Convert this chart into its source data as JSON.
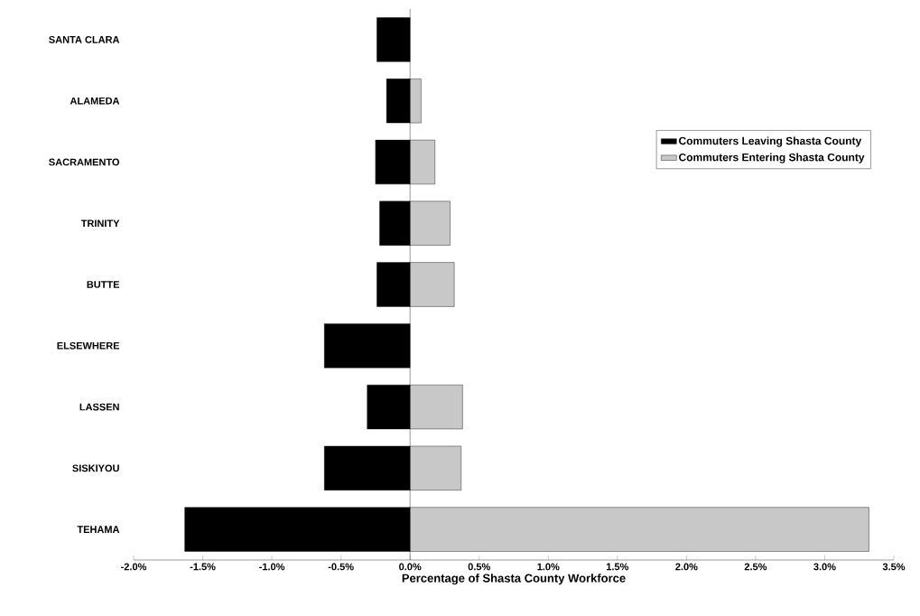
{
  "chart_data": {
    "type": "bar",
    "orientation": "horizontal",
    "xlabel": "Percentage of Shasta County Workforce",
    "categories": [
      "SANTA CLARA",
      "ALAMEDA",
      "SACRAMENTO",
      "TRINITY",
      "BUTTE",
      "ELSEWHERE",
      "LASSEN",
      "SISKIYOU",
      "TEHAMA"
    ],
    "series": [
      {
        "name": "Commuters Leaving Shasta County",
        "color": "#000000",
        "values": [
          -0.24,
          -0.17,
          -0.25,
          -0.22,
          -0.24,
          -0.62,
          -0.31,
          -0.62,
          -1.63
        ]
      },
      {
        "name": "Commuters Entering Shasta County",
        "color": "#c8c8c8",
        "values": [
          null,
          0.08,
          0.18,
          0.29,
          0.32,
          null,
          0.38,
          0.37,
          3.32
        ]
      }
    ],
    "xlim": [
      -2.0,
      3.5
    ],
    "xticks": [
      {
        "value": -2.0,
        "label": "-2.0%"
      },
      {
        "value": -1.5,
        "label": "-1.5%"
      },
      {
        "value": -1.0,
        "label": "-1.0%"
      },
      {
        "value": -0.5,
        "label": "-0.5%"
      },
      {
        "value": 0.0,
        "label": "0.0%"
      },
      {
        "value": 0.5,
        "label": "0.5%"
      },
      {
        "value": 1.0,
        "label": "1.0%"
      },
      {
        "value": 1.5,
        "label": "1.5%"
      },
      {
        "value": 2.0,
        "label": "2.0%"
      },
      {
        "value": 2.5,
        "label": "2.5%"
      },
      {
        "value": 3.0,
        "label": "3.0%"
      },
      {
        "value": 3.5,
        "label": "3.5%"
      }
    ],
    "ref_lines": [
      {
        "axis": "x",
        "value": 0
      }
    ],
    "grid": false,
    "stacked": true,
    "legend": "top right"
  }
}
